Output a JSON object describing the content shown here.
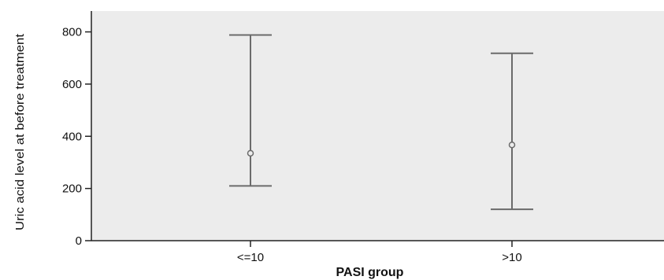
{
  "chart_data": {
    "type": "errorbar",
    "xlabel": "PASI group",
    "ylabel": "Uric acid level at before treatment",
    "categories": [
      "<=10",
      ">10"
    ],
    "points": [
      {
        "category": "<=10",
        "mean": 335,
        "lower": 210,
        "upper": 788
      },
      {
        "category": ">10",
        "mean": 367,
        "lower": 120,
        "upper": 718
      }
    ],
    "ylim": [
      0,
      880
    ],
    "yticks": [
      0,
      200,
      400,
      600,
      800
    ],
    "grid": false,
    "colors": {
      "plot_background": "#ececec",
      "errorbar": "#6b6b6b",
      "axis": "#222222"
    }
  }
}
